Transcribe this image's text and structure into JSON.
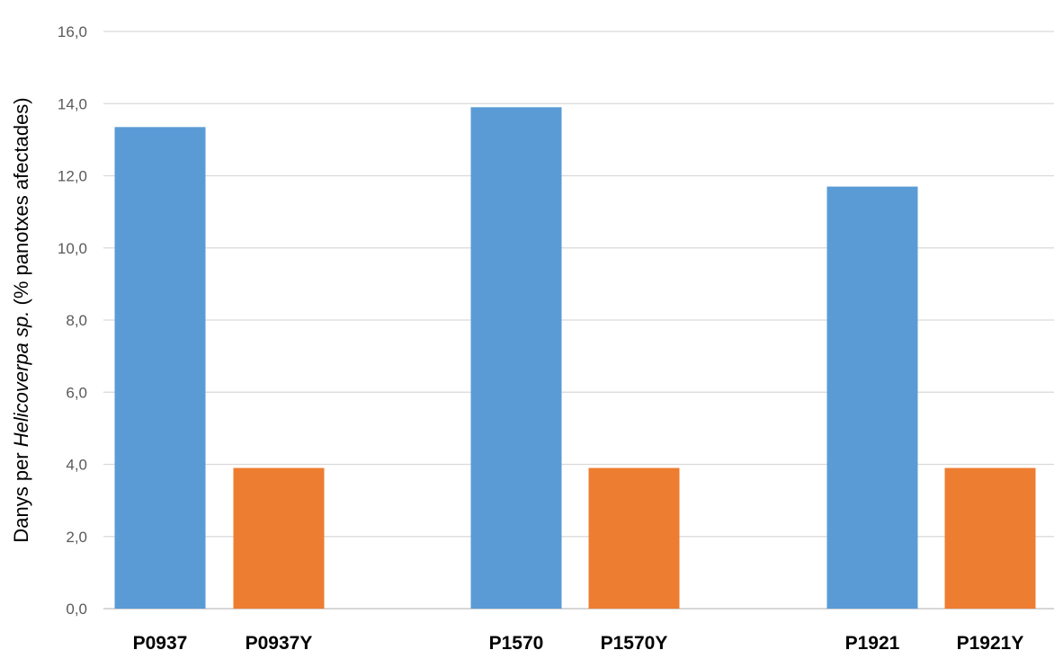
{
  "chart_data": {
    "type": "bar",
    "categories": [
      "P0937",
      "P0937Y",
      "P1570",
      "P1570Y",
      "P1921",
      "P1921Y"
    ],
    "values": [
      13.35,
      3.9,
      13.9,
      3.9,
      11.7,
      3.9
    ],
    "bar_colors": [
      "#5b9bd5",
      "#ed7d31",
      "#5b9bd5",
      "#ed7d31",
      "#5b9bd5",
      "#ed7d31"
    ],
    "title": "",
    "xlabel": "",
    "ylabel": {
      "prefix": "Danys per ",
      "italic": "Helicoverpa sp.",
      "suffix": " (% panotxes afectades)"
    },
    "ylim": [
      0,
      16
    ],
    "yticks": [
      "0,0",
      "2,0",
      "4,0",
      "6,0",
      "8,0",
      "10,0",
      "12,0",
      "14,0",
      "16,0"
    ],
    "grid": true,
    "legend": "none"
  }
}
